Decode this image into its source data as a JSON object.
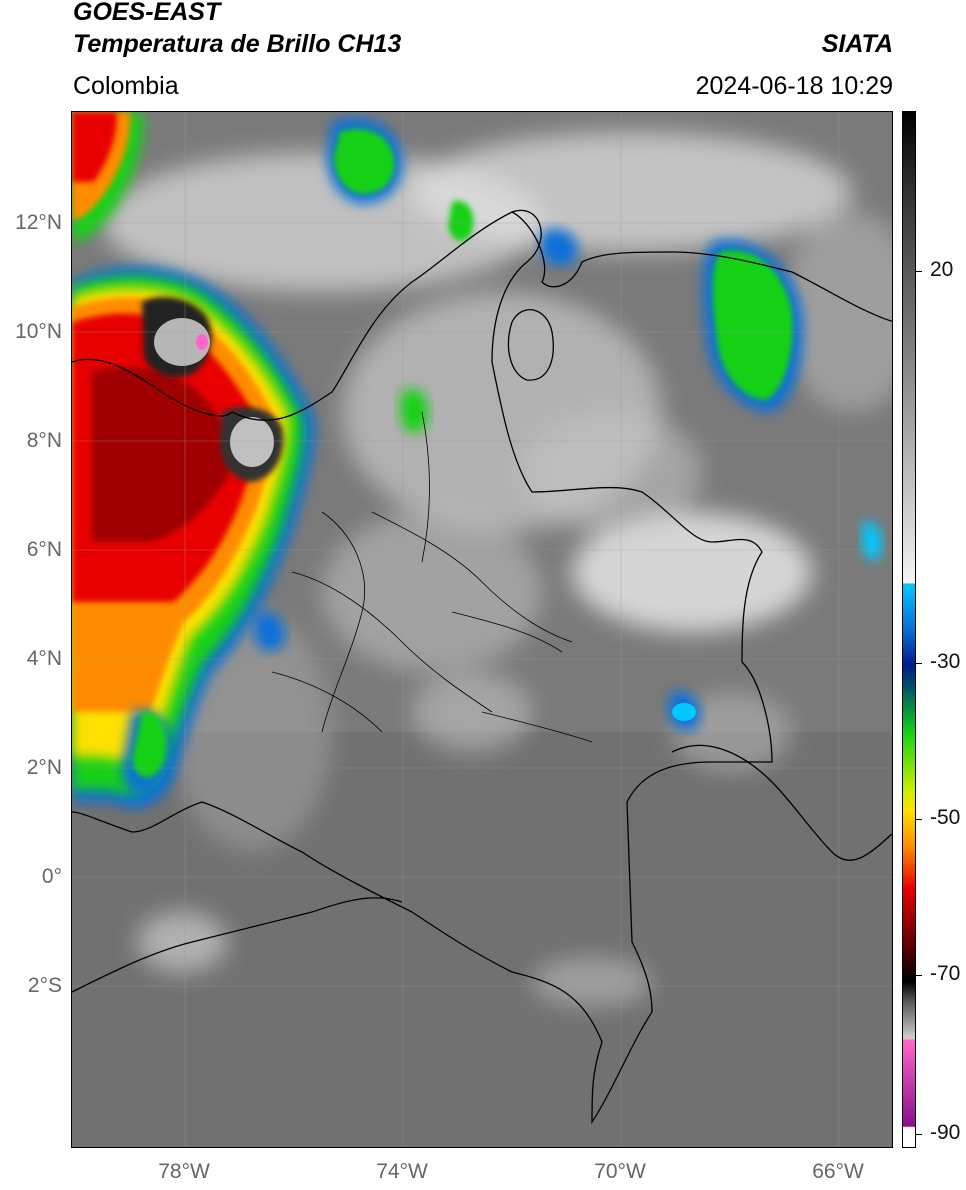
{
  "header": {
    "satellite": "GOES-EAST",
    "product": "Temperatura de Brillo CH13",
    "region": "Colombia",
    "source": "SIATA",
    "datetime": "2024-06-18 10:29"
  },
  "map": {
    "lat_labels": [
      "12°N",
      "10°N",
      "8°N",
      "6°N",
      "4°N",
      "2°N",
      "0°",
      "2°S"
    ],
    "lon_labels": [
      "78°W",
      "74°W",
      "70°W",
      "66°W"
    ],
    "colors": {
      "background_gray": "#7a7a7a",
      "cloud_white": "#e8e8e8",
      "cold_green": "#2ed12e",
      "cold_blue": "#0a6fd8",
      "cold_red": "#e01010",
      "cold_orange": "#ff8c00",
      "cold_yellow": "#ffe000",
      "border_color": "#000000"
    }
  },
  "colorbar": {
    "tick_labels": [
      "20",
      "-30",
      "-50",
      "-70",
      "-90"
    ],
    "stops": [
      {
        "pos": 0.0,
        "color": "#000000"
      },
      {
        "pos": 0.08,
        "color": "#333333"
      },
      {
        "pos": 0.25,
        "color": "#8a8a8a"
      },
      {
        "pos": 0.4,
        "color": "#d6d6d6"
      },
      {
        "pos": 0.455,
        "color": "#f5f5f5"
      },
      {
        "pos": 0.456,
        "color": "#00c8ff"
      },
      {
        "pos": 0.5,
        "color": "#0a6fd8"
      },
      {
        "pos": 0.535,
        "color": "#001a8a"
      },
      {
        "pos": 0.56,
        "color": "#006060"
      },
      {
        "pos": 0.6,
        "color": "#17d117"
      },
      {
        "pos": 0.655,
        "color": "#c8f000"
      },
      {
        "pos": 0.675,
        "color": "#ffe000"
      },
      {
        "pos": 0.71,
        "color": "#ff8c00"
      },
      {
        "pos": 0.75,
        "color": "#e80000"
      },
      {
        "pos": 0.8,
        "color": "#6a0000"
      },
      {
        "pos": 0.84,
        "color": "#000000"
      },
      {
        "pos": 0.86,
        "color": "#5a5a5a"
      },
      {
        "pos": 0.895,
        "color": "#cfcfcf"
      },
      {
        "pos": 0.897,
        "color": "#ff66cc"
      },
      {
        "pos": 0.98,
        "color": "#8a0f8a"
      },
      {
        "pos": 0.981,
        "color": "#ffffff"
      },
      {
        "pos": 1.0,
        "color": "#ffffff"
      }
    ]
  }
}
